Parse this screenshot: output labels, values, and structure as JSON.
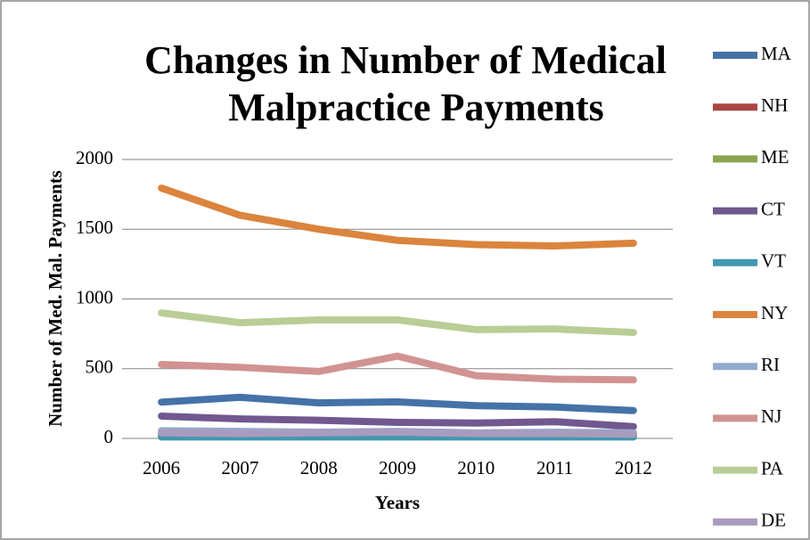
{
  "chart_data": {
    "type": "line",
    "title": [
      "Changes in Number of Medical",
      "Malpractice Payments"
    ],
    "x_label": "Years",
    "y_label": "Number of Med. Mal. Payments",
    "categories": [
      "2006",
      "2007",
      "2008",
      "2009",
      "2010",
      "2011",
      "2012"
    ],
    "ylim": [
      0,
      2000
    ],
    "yticks": [
      0,
      500,
      1000,
      1500,
      2000
    ],
    "grid": true,
    "legend": "right",
    "series": [
      {
        "name": "MA",
        "color": "#4572a7",
        "values": [
          260,
          295,
          255,
          262,
          235,
          225,
          200
        ]
      },
      {
        "name": "NH",
        "color": "#aa4643",
        "values": [
          35,
          30,
          30,
          35,
          30,
          30,
          25
        ]
      },
      {
        "name": "ME",
        "color": "#89a54e",
        "values": [
          20,
          20,
          20,
          20,
          20,
          20,
          20
        ]
      },
      {
        "name": "CT",
        "color": "#71588f",
        "values": [
          160,
          140,
          130,
          115,
          110,
          120,
          85
        ]
      },
      {
        "name": "VT",
        "color": "#4198af",
        "values": [
          10,
          10,
          10,
          10,
          10,
          10,
          10
        ]
      },
      {
        "name": "NY",
        "color": "#db843d",
        "values": [
          1795,
          1600,
          1500,
          1420,
          1390,
          1380,
          1400
        ]
      },
      {
        "name": "RI",
        "color": "#93a9cf",
        "values": [
          55,
          50,
          45,
          50,
          40,
          45,
          40
        ]
      },
      {
        "name": "NJ",
        "color": "#d19392",
        "values": [
          530,
          510,
          480,
          590,
          450,
          425,
          420
        ]
      },
      {
        "name": "PA",
        "color": "#b9cd96",
        "values": [
          900,
          830,
          850,
          850,
          780,
          785,
          760
        ]
      },
      {
        "name": "DE",
        "color": "#a99bbd",
        "values": [
          40,
          35,
          40,
          45,
          35,
          35,
          30
        ]
      }
    ]
  }
}
